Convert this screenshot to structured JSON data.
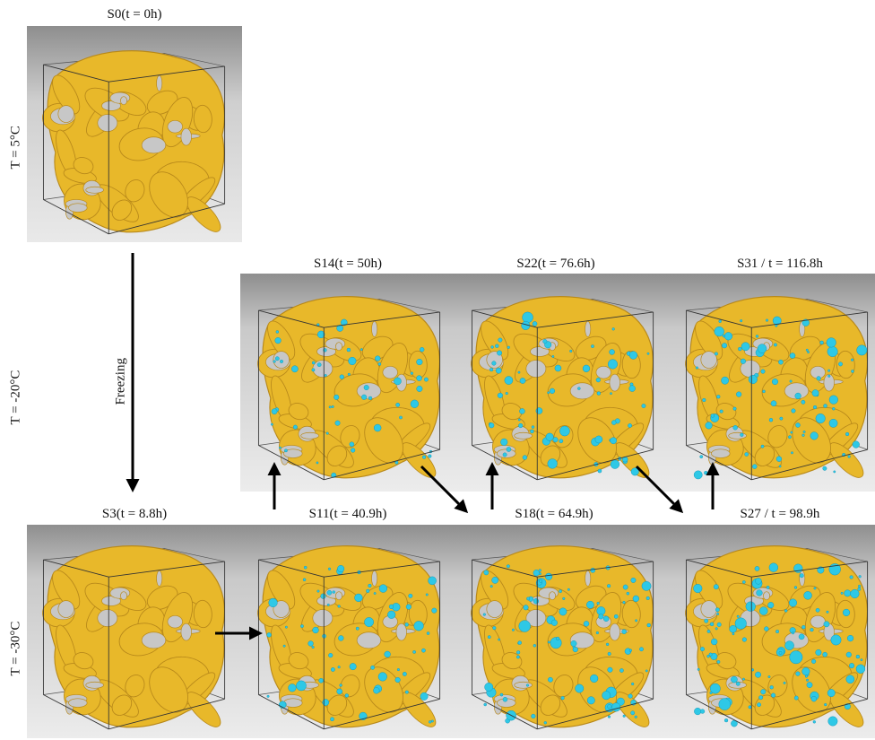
{
  "colors": {
    "material": "#e8b82a",
    "material_dark": "#b8891a",
    "ice": "#2ec8e6",
    "ice_dark": "#1296b8",
    "arrow": "#000000"
  },
  "temperatures": {
    "t_5": "T = 5°C",
    "t_m20": "T = -20°C",
    "t_m30": "T = -30°C"
  },
  "freezing_label": "Freezing",
  "samples": {
    "s0": {
      "label": "S0(t = 0h)",
      "ice": 0
    },
    "s14": {
      "label": "S14(t = 50h)",
      "ice": 55
    },
    "s22": {
      "label": "S22(t = 76.6h)",
      "ice": 70
    },
    "s31": {
      "label": "S31 / t = 116.8h",
      "ice": 85
    },
    "s3": {
      "label": "S3(t = 8.8h)",
      "ice": 0
    },
    "s11": {
      "label": "S11(t = 40.9h)",
      "ice": 70
    },
    "s18": {
      "label": "S18(t = 64.9h)",
      "ice": 95
    },
    "s27": {
      "label": "S27 / t = 98.9h",
      "ice": 110
    }
  }
}
